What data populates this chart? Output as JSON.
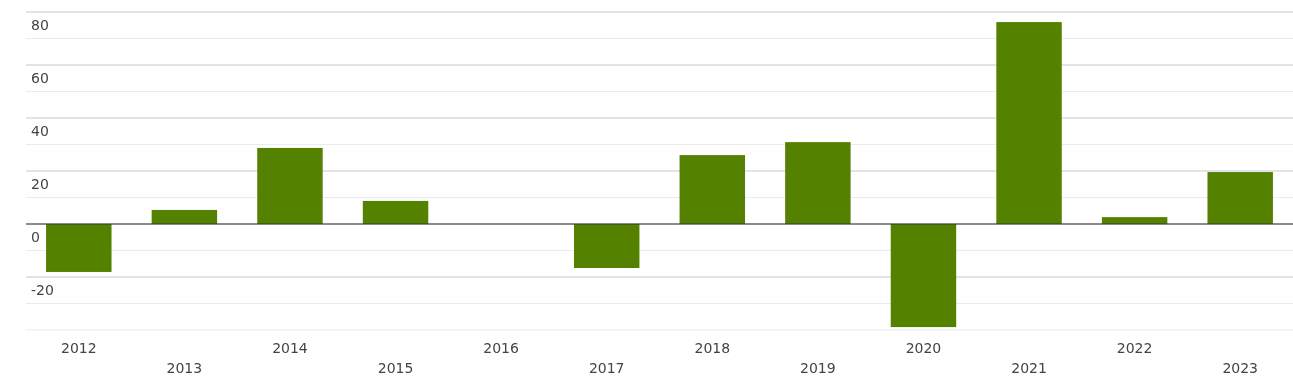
{
  "chart_data": {
    "type": "bar",
    "categories": [
      "2012",
      "2013",
      "2014",
      "2015",
      "2016",
      "2017",
      "2018",
      "2019",
      "2020",
      "2021",
      "2022",
      "2023"
    ],
    "values": [
      -18.1,
      5.3,
      28.7,
      8.7,
      0,
      -16.6,
      26,
      30.9,
      -38.9,
      76.2,
      2.6,
      19.6
    ],
    "color": "#548200",
    "ylim": [
      -40,
      80
    ],
    "yticks": [
      {
        "value": -40,
        "label": null
      },
      {
        "value": -30,
        "label": null
      },
      -20,
      {
        "value": -10,
        "label": null
      },
      0,
      {
        "value": 10,
        "label": null
      },
      20,
      {
        "value": 30,
        "label": null
      },
      40,
      {
        "value": 50,
        "label": null
      },
      60,
      {
        "value": 70,
        "label": null
      },
      80
    ],
    "grid": "y"
  }
}
